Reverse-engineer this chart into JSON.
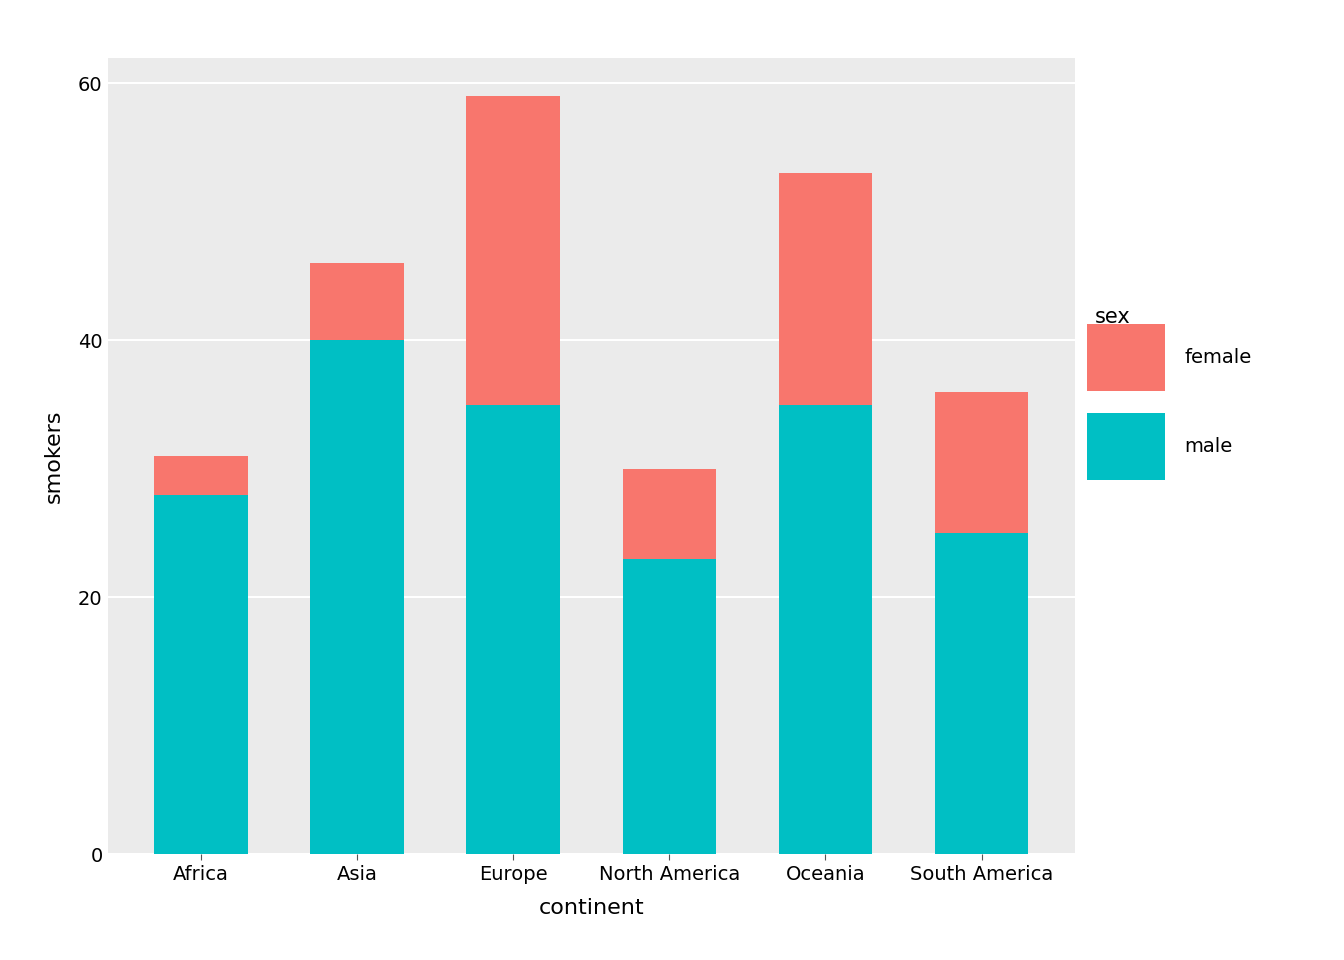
{
  "categories": [
    "Africa",
    "Asia",
    "Europe",
    "North America",
    "Oceania",
    "South America"
  ],
  "male": [
    28,
    40,
    35,
    23,
    35,
    25
  ],
  "female": [
    3,
    6,
    24,
    7,
    18,
    11
  ],
  "color_male": "#00BFC4",
  "color_female": "#F8766D",
  "title": "",
  "xlabel": "continent",
  "ylabel": "smokers",
  "legend_title": "sex",
  "ylim": [
    0,
    62
  ],
  "yticks": [
    0,
    20,
    40,
    60
  ],
  "background_color": "#EBEBEB",
  "panel_background": "#EBEBEB",
  "grid_color": "#FFFFFF",
  "bar_width": 0.6
}
